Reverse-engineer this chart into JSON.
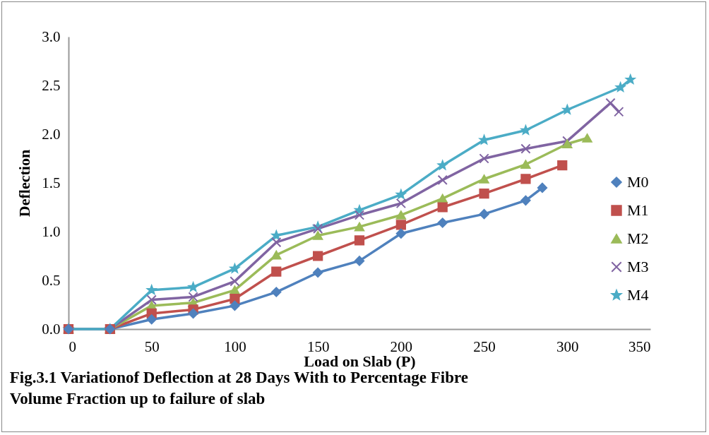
{
  "chart_data": {
    "type": "line",
    "title": "Fig.3.1 Variationof Deflection at 28 Days With to Percentage Fibre\nVolume Fraction up to failure of slab",
    "xlabel": "Load on Slab (P)",
    "ylabel": "Deflection",
    "xlim": [
      0,
      350
    ],
    "xticks": [
      0,
      50,
      100,
      150,
      200,
      250,
      300,
      350
    ],
    "ylim": [
      0,
      3
    ],
    "yticks": [
      {
        "value": 0,
        "label": "0.0"
      },
      0.5,
      {
        "value": 1,
        "label": "1.0"
      },
      1.5,
      {
        "value": 2,
        "label": "2.0"
      },
      2.5,
      {
        "value": 3,
        "label": "3.0"
      }
    ],
    "grid": false,
    "legend": "right",
    "line_style": "solid",
    "series": [
      {
        "name": "M0",
        "color": "#4f81bd",
        "marker": "diamond",
        "x": [
          0,
          25,
          50,
          75,
          100,
          125,
          150,
          175,
          200,
          225,
          250,
          275,
          285
        ],
        "values": [
          0,
          0,
          0.1,
          0.16,
          0.24,
          0.38,
          0.58,
          0.7,
          0.98,
          1.09,
          1.18,
          1.32,
          1.45
        ]
      },
      {
        "name": "M1",
        "color": "#c0504d",
        "marker": "square",
        "x": [
          0,
          25,
          50,
          75,
          100,
          125,
          150,
          175,
          200,
          225,
          250,
          275,
          297
        ],
        "values": [
          0,
          0,
          0.16,
          0.2,
          0.31,
          0.59,
          0.75,
          0.91,
          1.07,
          1.25,
          1.39,
          1.54,
          1.68
        ]
      },
      {
        "name": "M2",
        "color": "#9bbb59",
        "marker": "triangle",
        "x": [
          0,
          25,
          50,
          75,
          100,
          125,
          150,
          175,
          200,
          225,
          250,
          275,
          300,
          312
        ],
        "values": [
          0,
          0,
          0.24,
          0.27,
          0.4,
          0.76,
          0.96,
          1.05,
          1.17,
          1.34,
          1.54,
          1.69,
          1.9,
          1.96
        ]
      },
      {
        "name": "M3",
        "color": "#8064a2",
        "marker": "cross",
        "x": [
          0,
          25,
          50,
          75,
          100,
          125,
          150,
          175,
          200,
          225,
          250,
          275,
          300,
          326,
          331
        ],
        "values": [
          0,
          0,
          0.3,
          0.33,
          0.49,
          0.89,
          1.03,
          1.17,
          1.29,
          1.53,
          1.75,
          1.85,
          1.93,
          2.32,
          2.23
        ]
      },
      {
        "name": "M4",
        "color": "#4bacc6",
        "marker": "star",
        "x": [
          0,
          25,
          50,
          75,
          100,
          125,
          150,
          175,
          200,
          225,
          250,
          275,
          300,
          332,
          338
        ],
        "values": [
          0,
          0,
          0.4,
          0.43,
          0.62,
          0.96,
          1.05,
          1.22,
          1.38,
          1.68,
          1.94,
          2.04,
          2.25,
          2.48,
          2.56
        ]
      }
    ]
  }
}
